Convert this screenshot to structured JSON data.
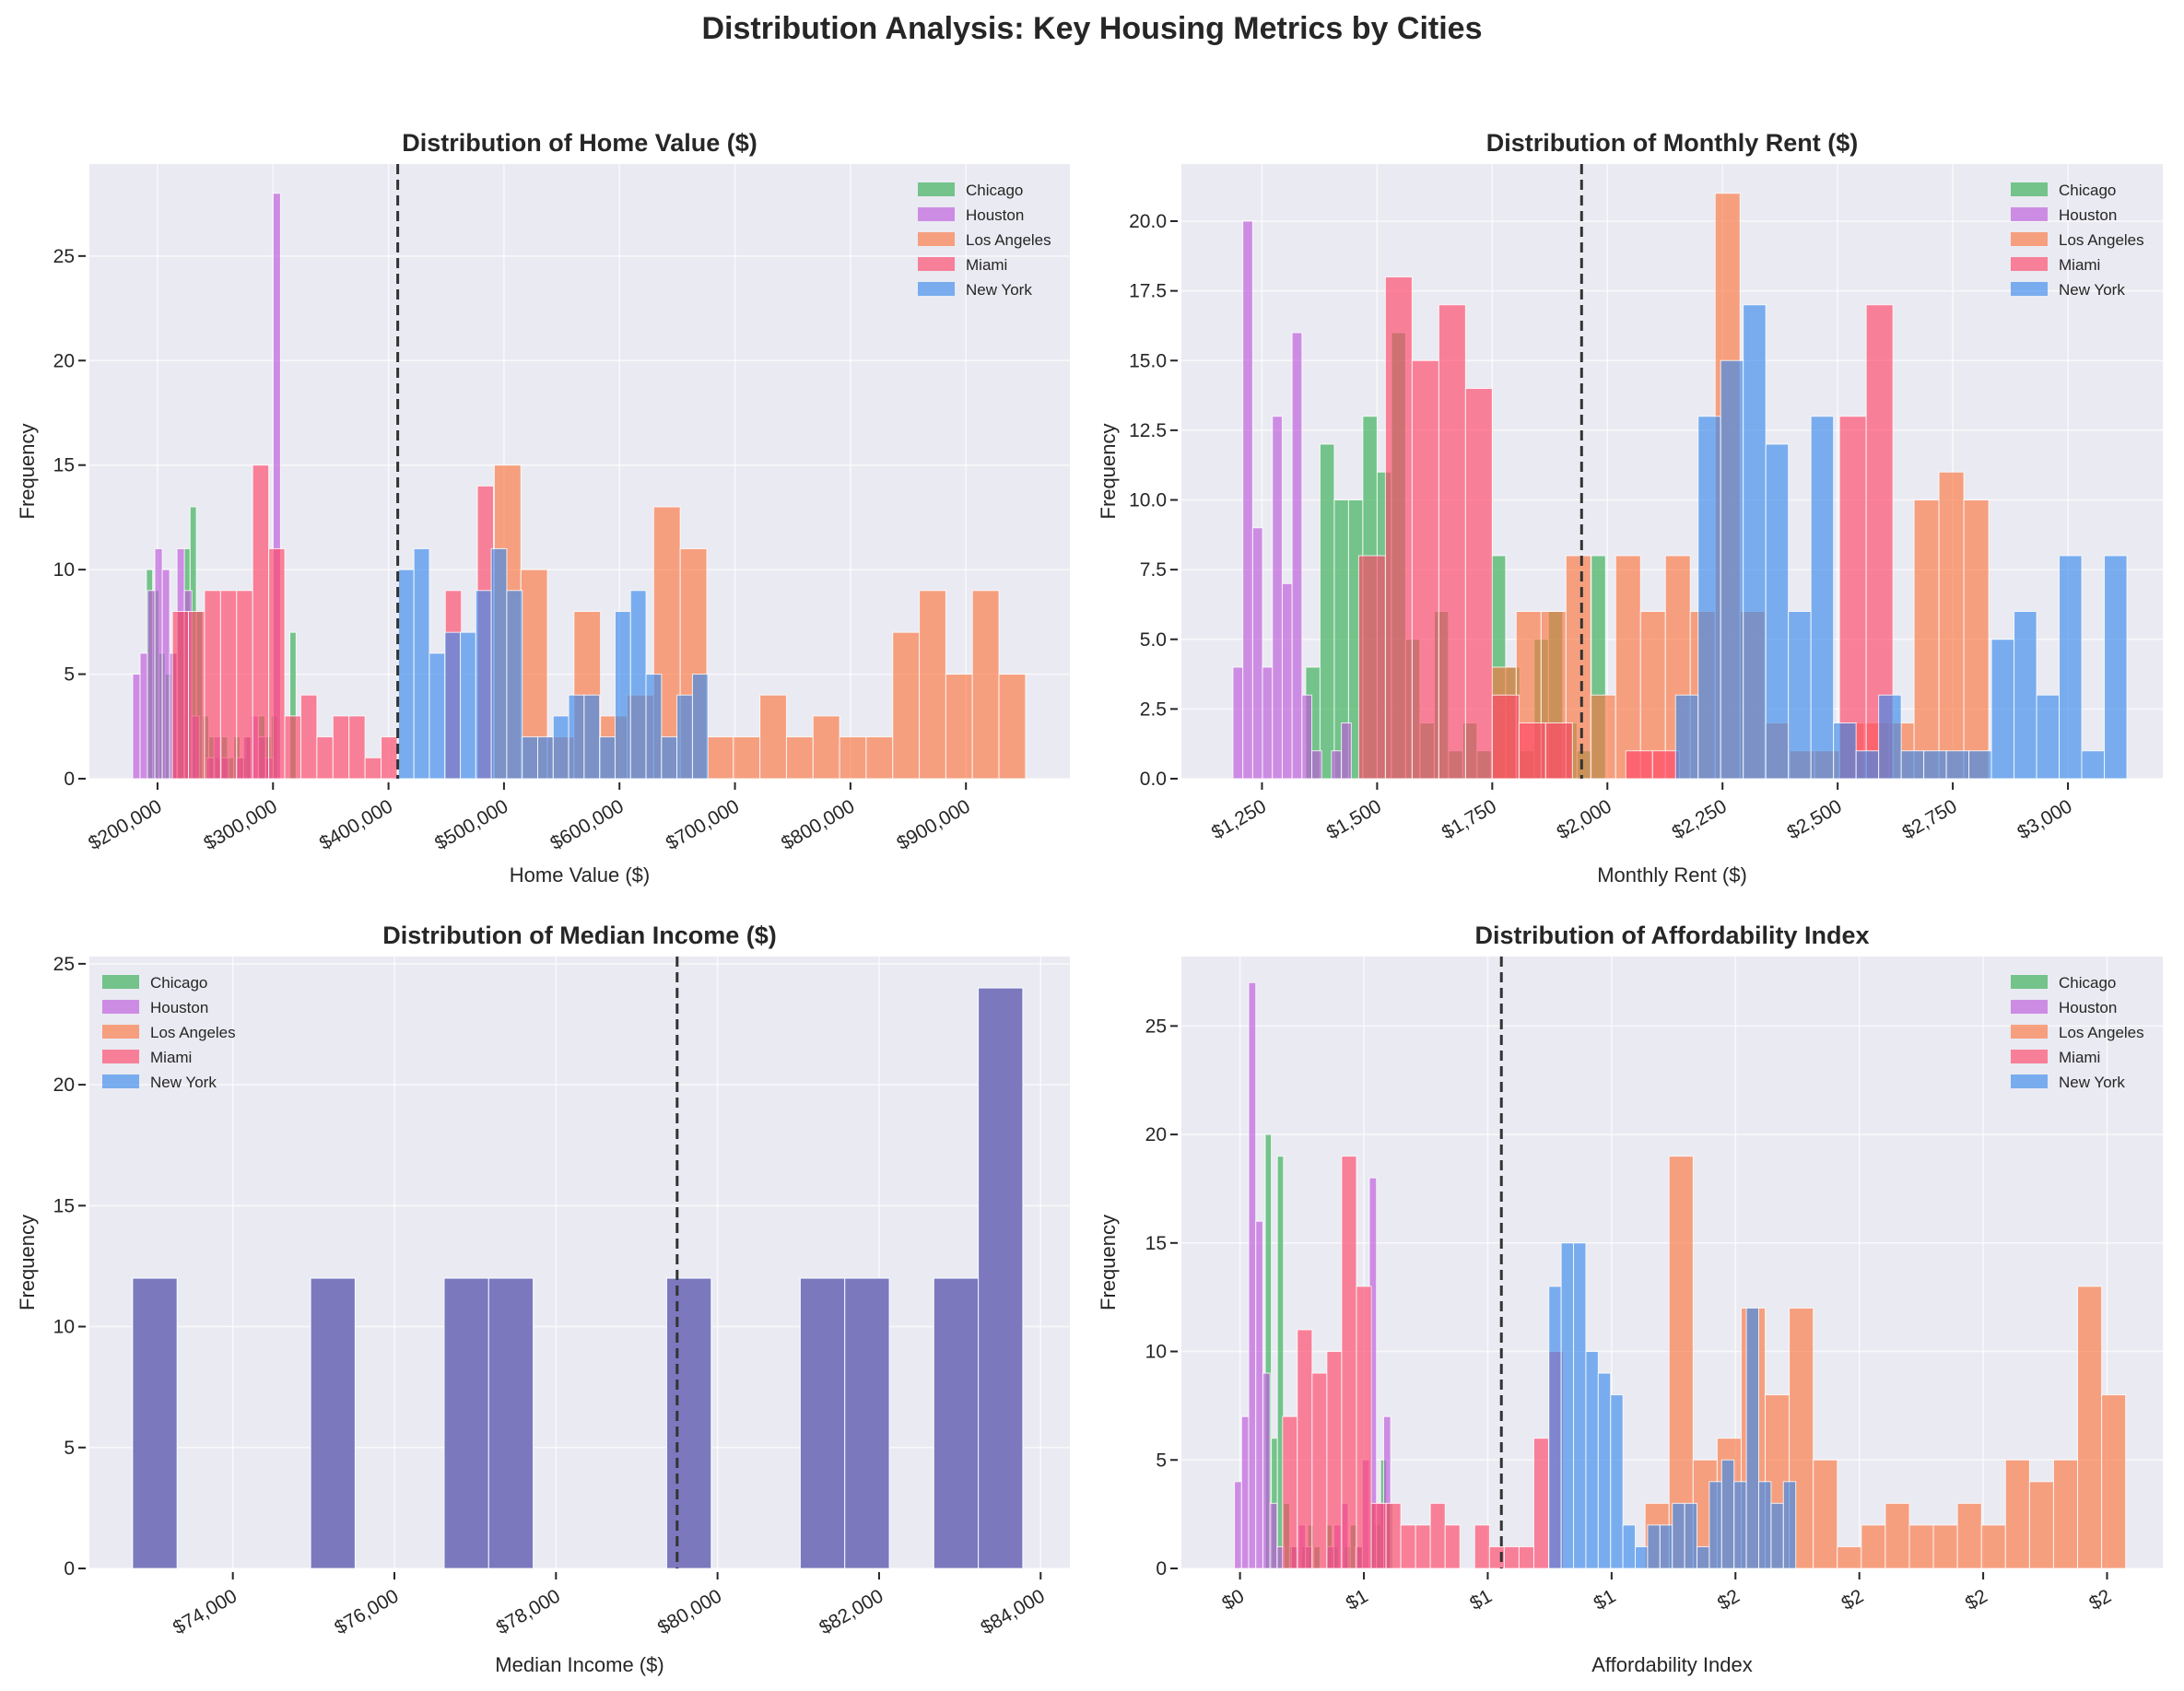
{
  "title": "Distribution Analysis: Key Housing Metrics by Cities",
  "colors": {
    "Chicago": "#33ae52",
    "Houston": "#bd59da",
    "Los Angeles": "#fb7641",
    "Miami": "#ff4567",
    "New York": "#3a8aeb",
    "background": "#eaeaf2",
    "mean_line": "#333333"
  },
  "chart_data": [
    {
      "type": "histogram",
      "title": "Distribution of Home Value ($)",
      "xlabel": "Home Value ($)",
      "ylabel": "Frequency",
      "xlim": [
        141000,
        990000
      ],
      "ylim": [
        0,
        29.4
      ],
      "xticks": [
        200000,
        300000,
        400000,
        500000,
        600000,
        700000,
        800000,
        900000
      ],
      "xtick_labels": [
        "$200,000",
        "$300,000",
        "$400,000",
        "$500,000",
        "$600,000",
        "$700,000",
        "$800,000",
        "$900,000"
      ],
      "yticks": [
        0,
        5,
        10,
        15,
        20,
        25
      ],
      "ytick_labels": [
        "0",
        "5",
        "10",
        "15",
        "20",
        "25"
      ],
      "grid": true,
      "legend": "top-right",
      "mean_line": 408000,
      "series": [
        {
          "name": "Chicago",
          "start": 190400,
          "bin_width": 5400,
          "counts": [
            10,
            9,
            6,
            5,
            6,
            8,
            11,
            13,
            8,
            3,
            2,
            1,
            2,
            1,
            2,
            1,
            2,
            0,
            3,
            2,
            3,
            0,
            0,
            7
          ]
        },
        {
          "name": "Houston",
          "start": 178500,
          "bin_width": 6400,
          "counts": [
            5,
            6,
            9,
            11,
            10,
            6,
            11,
            9,
            3,
            0,
            1,
            2,
            1,
            0,
            1,
            2,
            3,
            2,
            1,
            28
          ]
        },
        {
          "name": "Los Angeles",
          "start": 491600,
          "bin_width": 23000,
          "counts": [
            15,
            10,
            2,
            8,
            3,
            4,
            13,
            11,
            2,
            2,
            4,
            2,
            3,
            2,
            2,
            7,
            9,
            5,
            9,
            5
          ]
        },
        {
          "name": "Miami",
          "start": 212900,
          "bin_width": 13900,
          "counts": [
            8,
            8,
            9,
            9,
            9,
            15,
            11,
            3,
            4,
            2,
            3,
            3,
            1,
            2,
            0,
            0,
            0,
            9,
            0,
            14
          ]
        },
        {
          "name": "New York",
          "start": 408600,
          "bin_width": 13400,
          "counts": [
            10,
            11,
            6,
            7,
            7,
            9,
            11,
            9,
            2,
            2,
            3,
            4,
            4,
            2,
            8,
            9,
            5,
            2,
            4,
            5
          ]
        }
      ]
    },
    {
      "type": "histogram",
      "title": "Distribution of Monthly Rent ($)",
      "xlabel": "Monthly Rent ($)",
      "ylabel": "Frequency",
      "xlim": [
        1075,
        3206
      ],
      "ylim": [
        0,
        22.05
      ],
      "xticks": [
        1250,
        1500,
        1750,
        2000,
        2250,
        2500,
        2750,
        3000
      ],
      "xtick_labels": [
        "$1,250",
        "$1,500",
        "$1,750",
        "$2,000",
        "$2,250",
        "$2,500",
        "$2,750",
        "$3,000"
      ],
      "yticks": [
        0,
        2.5,
        5,
        7.5,
        10,
        12.5,
        15,
        17.5,
        20
      ],
      "ytick_labels": [
        "0.0",
        "2.5",
        "5.0",
        "7.5",
        "10.0",
        "12.5",
        "15.0",
        "17.5",
        "20.0"
      ],
      "grid": true,
      "legend": "top-right",
      "mean_line": 1944,
      "series": [
        {
          "name": "Chicago",
          "start": 1345,
          "bin_width": 31,
          "counts": [
            4,
            12,
            10,
            10,
            13,
            11,
            16,
            5,
            2,
            6,
            1,
            2,
            1,
            8,
            4,
            1,
            5,
            6,
            2,
            1,
            8
          ]
        },
        {
          "name": "Houston",
          "start": 1187,
          "bin_width": 21.4,
          "counts": [
            4,
            20,
            9,
            4,
            13,
            7,
            16,
            3,
            1,
            0,
            1,
            2
          ]
        },
        {
          "name": "Los Angeles",
          "start": 1748,
          "bin_width": 54,
          "counts": [
            4,
            6,
            6,
            8,
            3,
            8,
            6,
            8,
            6,
            21,
            6,
            2,
            1,
            1,
            2,
            2,
            2,
            10,
            11,
            10
          ]
        },
        {
          "name": "Miami",
          "start": 1460,
          "bin_width": 58,
          "counts": [
            8,
            18,
            15,
            17,
            14,
            3,
            2,
            2,
            0,
            0,
            1,
            1,
            0,
            0,
            0,
            0,
            0,
            0,
            13,
            17
          ]
        },
        {
          "name": "New York",
          "start": 2148,
          "bin_width": 49,
          "counts": [
            3,
            13,
            15,
            17,
            12,
            6,
            13,
            2,
            1,
            3,
            1,
            1,
            1,
            1,
            5,
            6,
            3,
            8,
            1,
            8
          ]
        }
      ]
    },
    {
      "type": "histogram",
      "title": "Distribution of Median Income ($)",
      "xlabel": "Median Income ($)",
      "ylabel": "Frequency",
      "xlim": [
        72224,
        84362
      ],
      "ylim": [
        0,
        25.3
      ],
      "xticks": [
        74000,
        76000,
        78000,
        80000,
        82000,
        84000
      ],
      "xtick_labels": [
        "$74,000",
        "$76,000",
        "$78,000",
        "$80,000",
        "$82,000",
        "$84,000"
      ],
      "yticks": [
        0,
        5,
        10,
        15,
        20,
        25
      ],
      "ytick_labels": [
        "0",
        "5",
        "10",
        "15",
        "20",
        "25"
      ],
      "grid": true,
      "legend": "top-left",
      "mean_line": 79500,
      "series": [
        {
          "name": "Chicago",
          "start": 72759,
          "bin_width": 551,
          "counts": [
            12,
            0,
            0,
            0,
            12,
            0,
            0,
            12,
            12,
            0,
            0,
            0,
            12,
            0,
            0,
            12,
            12,
            0,
            12,
            24
          ]
        },
        {
          "name": "Houston",
          "start": 72759,
          "bin_width": 551,
          "counts": [
            12,
            0,
            0,
            0,
            12,
            0,
            0,
            12,
            12,
            0,
            0,
            0,
            12,
            0,
            0,
            12,
            12,
            0,
            12,
            24
          ]
        },
        {
          "name": "Los Angeles",
          "start": 72759,
          "bin_width": 551,
          "counts": [
            12,
            0,
            0,
            0,
            12,
            0,
            0,
            12,
            12,
            0,
            0,
            0,
            12,
            0,
            0,
            12,
            12,
            0,
            12,
            24
          ]
        },
        {
          "name": "Miami",
          "start": 72759,
          "bin_width": 551,
          "counts": [
            12,
            0,
            0,
            0,
            12,
            0,
            0,
            12,
            12,
            0,
            0,
            0,
            12,
            0,
            0,
            12,
            12,
            0,
            12,
            24
          ]
        },
        {
          "name": "New York",
          "start": 72759,
          "bin_width": 551,
          "counts": [
            12,
            0,
            0,
            0,
            12,
            0,
            0,
            12,
            12,
            0,
            0,
            0,
            12,
            0,
            0,
            12,
            12,
            0,
            12,
            24
          ]
        }
      ]
    },
    {
      "type": "histogram",
      "title": "Distribution of Affordability Index",
      "xlabel": "Affordability Index",
      "ylabel": "Frequency",
      "xlim": [
        0.158,
        2.535
      ],
      "ylim": [
        0,
        28.2
      ],
      "xticks": [
        0.3,
        0.6,
        0.9,
        1.2,
        1.5,
        1.8,
        2.1,
        2.4
      ],
      "xtick_labels": [
        "$0",
        "$1",
        "$1",
        "$1",
        "$2",
        "$2",
        "$2",
        "$2"
      ],
      "yticks": [
        0,
        5,
        10,
        15,
        20,
        25
      ],
      "ytick_labels": [
        "0",
        "5",
        "10",
        "15",
        "20",
        "25"
      ],
      "grid": true,
      "legend": "top-right",
      "mean_line": 0.933,
      "series": [
        {
          "name": "Chicago",
          "start": 0.3612,
          "bin_width": 0.0147,
          "counts": [
            20,
            6,
            19,
            3,
            1,
            0,
            1,
            2,
            1,
            0,
            2,
            1,
            0,
            1,
            2,
            1,
            0,
            3,
            2,
            5,
            3
          ]
        },
        {
          "name": "Houston",
          "start": 0.2866,
          "bin_width": 0.0172,
          "counts": [
            4,
            7,
            27,
            16,
            9,
            3,
            1,
            0,
            1,
            2,
            1,
            0,
            0,
            1,
            2,
            3,
            0,
            1,
            5,
            18,
            3,
            7
          ]
        },
        {
          "name": "Los Angeles",
          "start": 1.281,
          "bin_width": 0.0582,
          "counts": [
            3,
            19,
            5,
            6,
            12,
            8,
            12,
            5,
            1,
            2,
            3,
            2,
            2,
            3,
            2,
            5,
            4,
            5,
            13,
            8
          ]
        },
        {
          "name": "Miami",
          "start": 0.403,
          "bin_width": 0.0358,
          "counts": [
            7,
            11,
            9,
            10,
            19,
            13,
            3,
            3,
            2,
            2,
            3,
            2,
            0,
            2,
            1,
            1,
            1,
            6,
            10
          ]
        },
        {
          "name": "New York",
          "start": 1.048,
          "bin_width": 0.0299,
          "counts": [
            13,
            15,
            15,
            10,
            9,
            8,
            2,
            1,
            2,
            2,
            3,
            3,
            1,
            4,
            5,
            4,
            12,
            4,
            3,
            4
          ]
        }
      ]
    }
  ]
}
